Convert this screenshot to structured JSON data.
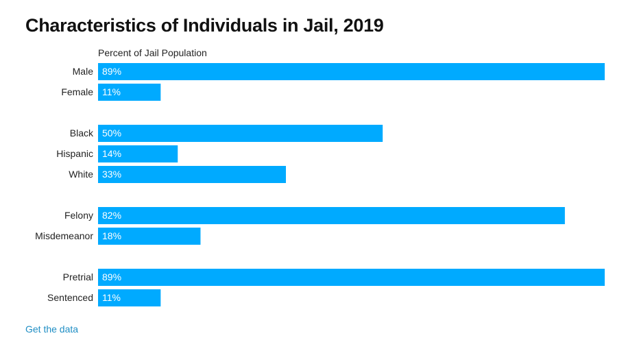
{
  "colors": {
    "bar": "#00aaff",
    "bar_label": "#ffffff",
    "link": "#1f8ec4"
  },
  "chart_data": {
    "type": "bar",
    "orientation": "horizontal",
    "title": "Characteristics of Individuals in Jail, 2019",
    "subtitle": "Percent of Jail Population",
    "xlabel": "",
    "ylabel": "",
    "xlim": [
      0,
      89
    ],
    "grid": false,
    "groups": [
      {
        "categories": [
          "Male",
          "Female"
        ],
        "values": [
          89,
          11
        ],
        "labels": [
          "89%",
          "11%"
        ]
      },
      {
        "categories": [
          "Black",
          "Hispanic",
          "White"
        ],
        "values": [
          50,
          14,
          33
        ],
        "labels": [
          "50%",
          "14%",
          "33%"
        ]
      },
      {
        "categories": [
          "Felony",
          "Misdemeanor"
        ],
        "values": [
          82,
          18
        ],
        "labels": [
          "82%",
          "18%"
        ]
      },
      {
        "categories": [
          "Pretrial",
          "Sentenced"
        ],
        "values": [
          89,
          11
        ],
        "labels": [
          "89%",
          "11%"
        ]
      }
    ]
  },
  "footer": {
    "link_text": "Get the data"
  }
}
